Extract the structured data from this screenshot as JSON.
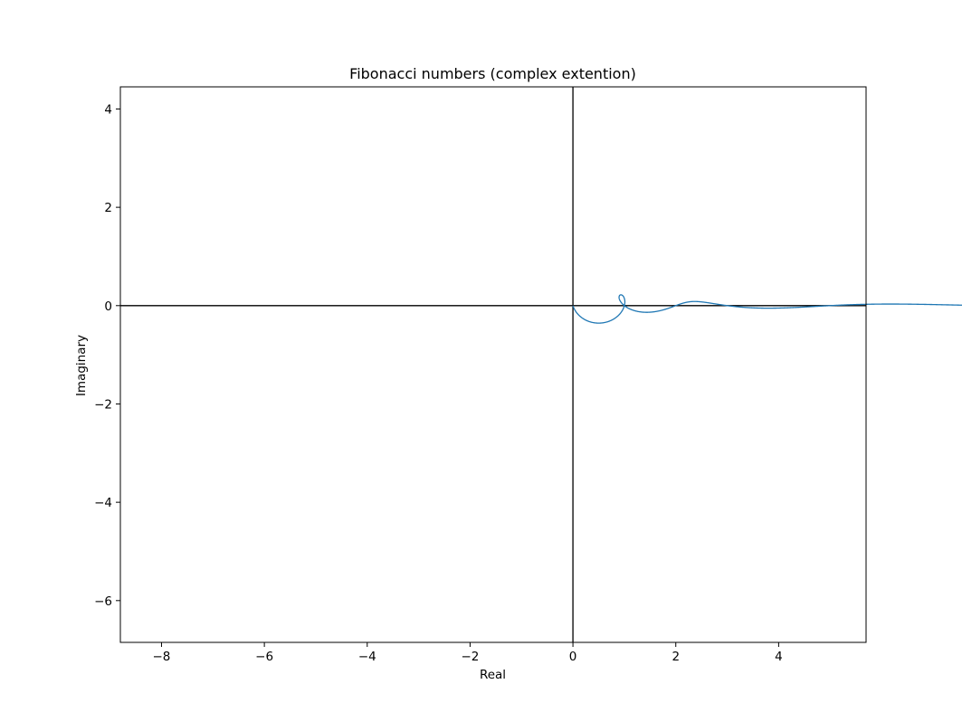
{
  "chart_data": {
    "type": "line",
    "title": "Fibonacci numbers (complex extention)",
    "xlabel": "Real",
    "ylabel": "Imaginary",
    "xlim": [
      -8.8,
      5.7
    ],
    "ylim": [
      -6.85,
      4.45
    ],
    "xticks": [
      -8,
      -6,
      -4,
      -2,
      0,
      2,
      4
    ],
    "yticks": [
      -6,
      -4,
      -2,
      0,
      2,
      4
    ],
    "xtick_labels": [
      "−8",
      "−6",
      "−4",
      "−2",
      "0",
      "2",
      "4"
    ],
    "ytick_labels": [
      "−6",
      "−4",
      "−2",
      "0",
      "2",
      "4"
    ],
    "reference_lines": {
      "x": 0,
      "y": 0,
      "color": "#000000"
    },
    "grid": false,
    "series": [
      {
        "color": "#1f77b4",
        "function": "Re/Im of (phi^t - cos(pi t) phi^-t) / sqrt(5)",
        "t_range": [
          0,
          6
        ]
      }
    ]
  }
}
